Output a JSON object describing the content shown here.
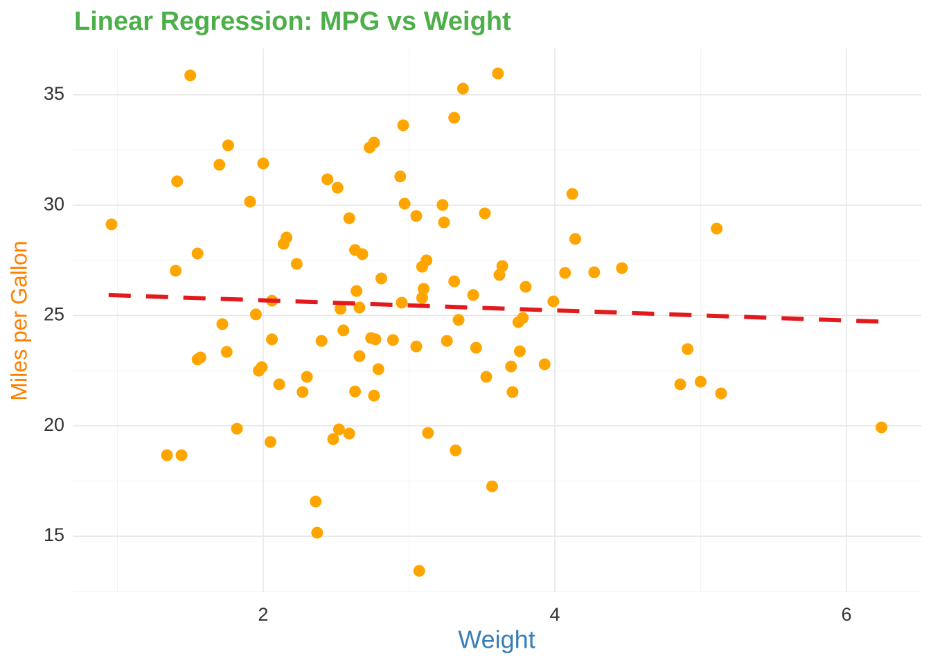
{
  "chart_data": {
    "type": "scatter",
    "title": "Linear Regression: MPG vs Weight",
    "x_label": "Weight",
    "y_label": "Miles per Gallon",
    "xlim": [
      0.694,
      6.513
    ],
    "ylim": [
      12.46,
      37.1
    ],
    "xticks": [
      2,
      4,
      6
    ],
    "yticks": [
      15,
      20,
      25,
      30,
      35
    ],
    "grid": true,
    "minor_grid": true,
    "series": [
      {
        "color": "#ffa500",
        "x": [
          0.96,
          1.5,
          1.41,
          1.4,
          1.34,
          1.44,
          1.55,
          1.55,
          1.57,
          1.7,
          1.76,
          1.72,
          1.75,
          1.82,
          1.91,
          2.0,
          1.95,
          1.97,
          1.99,
          2.05,
          2.06,
          2.06,
          2.11,
          2.16,
          2.14,
          2.23,
          2.27,
          2.3,
          2.36,
          2.37,
          2.4,
          2.44,
          2.51,
          2.48,
          2.52,
          2.53,
          2.55,
          2.59,
          2.59,
          2.63,
          2.64,
          2.63,
          2.66,
          2.66,
          2.68,
          2.73,
          2.76,
          2.74,
          2.77,
          2.76,
          2.79,
          2.81,
          2.89,
          2.94,
          2.96,
          2.97,
          2.95,
          3.05,
          3.05,
          3.07,
          3.09,
          3.12,
          3.1,
          3.09,
          3.13,
          3.23,
          3.24,
          3.26,
          3.31,
          3.37,
          3.31,
          3.34,
          3.32,
          3.44,
          3.46,
          3.52,
          3.53,
          3.57,
          3.61,
          3.62,
          3.64,
          3.7,
          3.71,
          3.75,
          3.78,
          3.76,
          3.8,
          3.93,
          3.99,
          4.07,
          4.12,
          4.14,
          4.27,
          4.46,
          4.86,
          4.91,
          5.0,
          5.11,
          5.14,
          6.24
        ],
        "values": [
          29.13,
          35.88,
          31.08,
          27.03,
          18.67,
          18.67,
          27.81,
          23.01,
          23.1,
          31.83,
          32.71,
          24.61,
          23.35,
          19.87,
          30.16,
          31.89,
          25.05,
          22.5,
          22.66,
          19.27,
          25.67,
          23.92,
          21.88,
          28.53,
          28.25,
          27.34,
          21.53,
          22.22,
          16.57,
          15.16,
          23.85,
          31.17,
          30.79,
          19.4,
          19.84,
          25.3,
          24.33,
          29.41,
          19.65,
          27.97,
          26.11,
          21.56,
          25.36,
          23.16,
          27.78,
          32.61,
          32.83,
          23.98,
          23.92,
          21.37,
          22.57,
          26.68,
          23.89,
          31.3,
          33.62,
          30.07,
          25.58,
          29.51,
          23.6,
          13.43,
          27.21,
          27.5,
          26.21,
          25.8,
          19.68,
          30.01,
          29.22,
          23.85,
          33.96,
          35.28,
          26.55,
          24.8,
          18.89,
          25.93,
          23.54,
          29.63,
          22.22,
          17.26,
          35.97,
          26.84,
          27.24,
          22.69,
          21.53,
          24.7,
          24.89,
          23.38,
          26.3,
          22.79,
          25.64,
          26.93,
          30.51,
          28.47,
          26.96,
          27.15,
          21.88,
          23.48,
          22.0,
          28.94,
          21.47,
          19.93
        ]
      }
    ],
    "fit_line": {
      "color": "#e31a1c",
      "x": [
        0.94,
        6.25
      ],
      "values": [
        25.93,
        24.72
      ]
    }
  }
}
